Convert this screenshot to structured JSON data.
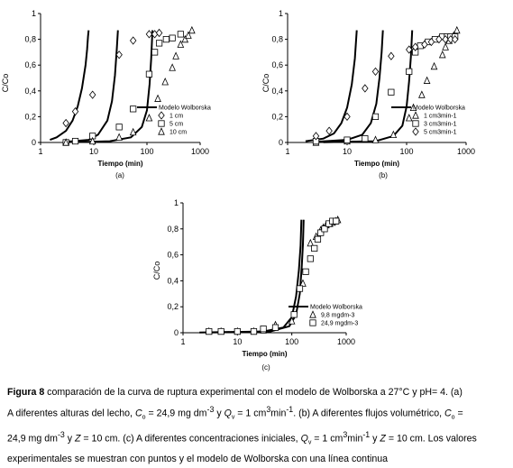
{
  "charts": [
    {
      "id": "a",
      "sublabel": "(a)"
    },
    {
      "id": "b",
      "sublabel": "(b)"
    },
    {
      "id": "c",
      "sublabel": "(c)"
    }
  ],
  "chart_data": [
    {
      "type": "scatter",
      "panel": "(a)",
      "xlabel": "Tiempo (min)",
      "ylabel": "C/Co",
      "x_scale": "log",
      "xlim": [
        1,
        1000
      ],
      "ylim": [
        0,
        1
      ],
      "x_ticks": [
        "1",
        "10",
        "100",
        "1000"
      ],
      "y_ticks": [
        "0",
        "0,2",
        "0,4",
        "0,6",
        "0,8",
        "1"
      ],
      "legend": [
        "Modelo Wolborska",
        "1 cm",
        "5 cm",
        "10 cm"
      ],
      "series": [
        {
          "name": "Modelo Wolborska",
          "style": "line",
          "segments": [
            {
              "x": [
                1.5,
                2,
                3,
                4,
                5,
                6,
                7,
                7.5,
                7.8,
                8
              ],
              "y": [
                0.02,
                0.04,
                0.09,
                0.17,
                0.28,
                0.42,
                0.6,
                0.72,
                0.82,
                0.87
              ]
            },
            {
              "x": [
                3,
                8,
                12,
                18,
                22,
                25,
                27,
                28.5
              ],
              "y": [
                0.005,
                0.02,
                0.06,
                0.17,
                0.32,
                0.52,
                0.72,
                0.87
              ]
            },
            {
              "x": [
                4,
                20,
                50,
                80,
                100,
                112,
                120,
                127
              ],
              "y": [
                0.002,
                0.01,
                0.04,
                0.12,
                0.25,
                0.45,
                0.65,
                0.87
              ]
            }
          ]
        },
        {
          "name": "1 cm",
          "marker": "diamond",
          "x": [
            3,
            4.5,
            9.5,
            30,
            55,
            110,
            140,
            170
          ],
          "y": [
            0.15,
            0.24,
            0.37,
            0.68,
            0.79,
            0.84,
            0.84,
            0.85
          ]
        },
        {
          "name": "5 cm",
          "marker": "square",
          "x": [
            3,
            4.5,
            9.5,
            30,
            55,
            110,
            140,
            170,
            230,
            300,
            430
          ],
          "y": [
            0,
            0.01,
            0.05,
            0.12,
            0.26,
            0.53,
            0.7,
            0.77,
            0.8,
            0.81,
            0.84
          ]
        },
        {
          "name": "10 cm",
          "marker": "triangle",
          "x": [
            3,
            9.5,
            30,
            55,
            110,
            160,
            220,
            300,
            350,
            430,
            520,
            600,
            700
          ],
          "y": [
            0,
            0.01,
            0.04,
            0.08,
            0.19,
            0.34,
            0.47,
            0.58,
            0.67,
            0.76,
            0.8,
            0.83,
            0.87
          ]
        }
      ]
    },
    {
      "type": "scatter",
      "panel": "(b)",
      "xlabel": "Tiempo (min)",
      "ylabel": "C/Co",
      "x_scale": "log",
      "xlim": [
        1,
        1000
      ],
      "ylim": [
        0,
        1
      ],
      "x_ticks": [
        "1",
        "10",
        "100",
        "1000"
      ],
      "y_ticks": [
        "0",
        "0,2",
        "0,4",
        "0,6",
        "0,8",
        "1"
      ],
      "legend": [
        "Modelo Wolborska",
        "1 cm3min-1",
        "3 cm3min-1",
        "5 cm3min-1"
      ],
      "series": [
        {
          "name": "Modelo Wolborska",
          "style": "line",
          "segments": [
            {
              "x": [
                2,
                4,
                6,
                8,
                10,
                12,
                13.5,
                14.5
              ],
              "y": [
                0.01,
                0.03,
                0.07,
                0.15,
                0.27,
                0.45,
                0.65,
                0.87
              ]
            },
            {
              "x": [
                3,
                10,
                18,
                25,
                31,
                35,
                38,
                40
              ],
              "y": [
                0.005,
                0.02,
                0.06,
                0.15,
                0.3,
                0.5,
                0.7,
                0.87
              ]
            },
            {
              "x": [
                4,
                30,
                60,
                85,
                100,
                110,
                118,
                124
              ],
              "y": [
                0.002,
                0.01,
                0.05,
                0.13,
                0.28,
                0.47,
                0.66,
                0.87
              ]
            }
          ]
        },
        {
          "name": "1 cm3min-1",
          "marker": "triangle",
          "x": [
            3,
            10,
            30,
            60,
            110,
            130,
            180,
            220,
            290,
            400,
            450,
            520,
            620,
            700
          ],
          "y": [
            0,
            0.01,
            0.02,
            0.06,
            0.19,
            0.27,
            0.37,
            0.48,
            0.59,
            0.68,
            0.74,
            0.79,
            0.83,
            0.87
          ]
        },
        {
          "name": "3 cm3min-1",
          "marker": "square",
          "x": [
            3,
            10,
            20,
            30,
            55,
            110,
            140,
            170,
            230,
            300,
            400,
            480,
            550,
            650
          ],
          "y": [
            0.01,
            0.02,
            0.03,
            0.2,
            0.39,
            0.55,
            0.7,
            0.75,
            0.78,
            0.8,
            0.82,
            0.82,
            0.82,
            0.82
          ]
        },
        {
          "name": "5 cm3min-1",
          "marker": "diamond",
          "x": [
            3,
            5,
            10,
            20,
            30,
            55,
            110,
            140,
            200,
            260,
            350,
            450,
            550,
            650
          ],
          "y": [
            0.05,
            0.09,
            0.2,
            0.42,
            0.55,
            0.67,
            0.72,
            0.74,
            0.76,
            0.78,
            0.8,
            0.8,
            0.8,
            0.8
          ]
        }
      ]
    },
    {
      "type": "scatter",
      "panel": "(c)",
      "xlabel": "Tiempo (min)",
      "ylabel": "C/Co",
      "x_scale": "log",
      "xlim": [
        1,
        1000
      ],
      "ylim": [
        0,
        1
      ],
      "x_ticks": [
        "1",
        "10",
        "100",
        "1000"
      ],
      "y_ticks": [
        "0",
        "0,2",
        "0,4",
        "0,6",
        "0,8",
        "1"
      ],
      "legend": [
        "Modelo Wolborska",
        "9,8 mgdm-3",
        "24,9 mgdm-3"
      ],
      "series": [
        {
          "name": "Modelo Wolborska",
          "style": "line",
          "segments": [
            {
              "x": [
                2,
                30,
                70,
                100,
                120,
                135,
                145,
                150
              ],
              "y": [
                0.002,
                0.01,
                0.04,
                0.12,
                0.28,
                0.48,
                0.67,
                0.87
              ]
            },
            {
              "x": [
                3,
                40,
                90,
                120,
                140,
                152,
                160,
                165
              ],
              "y": [
                0.002,
                0.01,
                0.05,
                0.14,
                0.3,
                0.5,
                0.68,
                0.87
              ]
            }
          ]
        },
        {
          "name": "9,8 mgdm-3",
          "marker": "triangle",
          "x": [
            3,
            5,
            10,
            20,
            30,
            50,
            100,
            160,
            220,
            280,
            340,
            380,
            430,
            500,
            560,
            640,
            700
          ],
          "y": [
            0.01,
            0.01,
            0.01,
            0.01,
            0.02,
            0.06,
            0.09,
            0.38,
            0.69,
            0.74,
            0.79,
            0.81,
            0.83,
            0.84,
            0.85,
            0.86,
            0.87
          ]
        },
        {
          "name": "24,9 mgdm-3",
          "marker": "square",
          "x": [
            3,
            5,
            10,
            20,
            30,
            50,
            110,
            140,
            180,
            220,
            260,
            300,
            340,
            400,
            480,
            560,
            650
          ],
          "y": [
            0.01,
            0.01,
            0.01,
            0.01,
            0.03,
            0.04,
            0.14,
            0.34,
            0.47,
            0.57,
            0.65,
            0.72,
            0.77,
            0.8,
            0.84,
            0.86,
            0.86
          ]
        }
      ]
    }
  ],
  "caption": {
    "fig_label": "Figura 8",
    "l1": " comparación de la curva de ruptura experimental con el modelo de Wolborska a 27°C y pH= 4. (a)",
    "l2a": "A diferentes alturas del lecho, ",
    "C": "C",
    "o": "o",
    "l2b": " = 24,9 mg dm",
    "neg3": "-3",
    "l2c": " y ",
    "Q": "Q",
    "v": "v",
    "l2d": " = 1 cm",
    "three": "3",
    "l2e": "min",
    "neg1": "-1",
    "l2f": ". (b) A diferentes flujos volumétrico, ",
    "l3a": "24,9 mg dm",
    "l3b": " y ",
    "Z": "Z",
    "l3c": " = 10 cm. (c) A diferentes concentraciones iniciales, ",
    "l3d": "min",
    "l3e": " y ",
    "l3f": " = 10 cm. Los valores",
    "l4": "experimentales se muestran con puntos y el modelo de Wolborska con una línea continua"
  }
}
